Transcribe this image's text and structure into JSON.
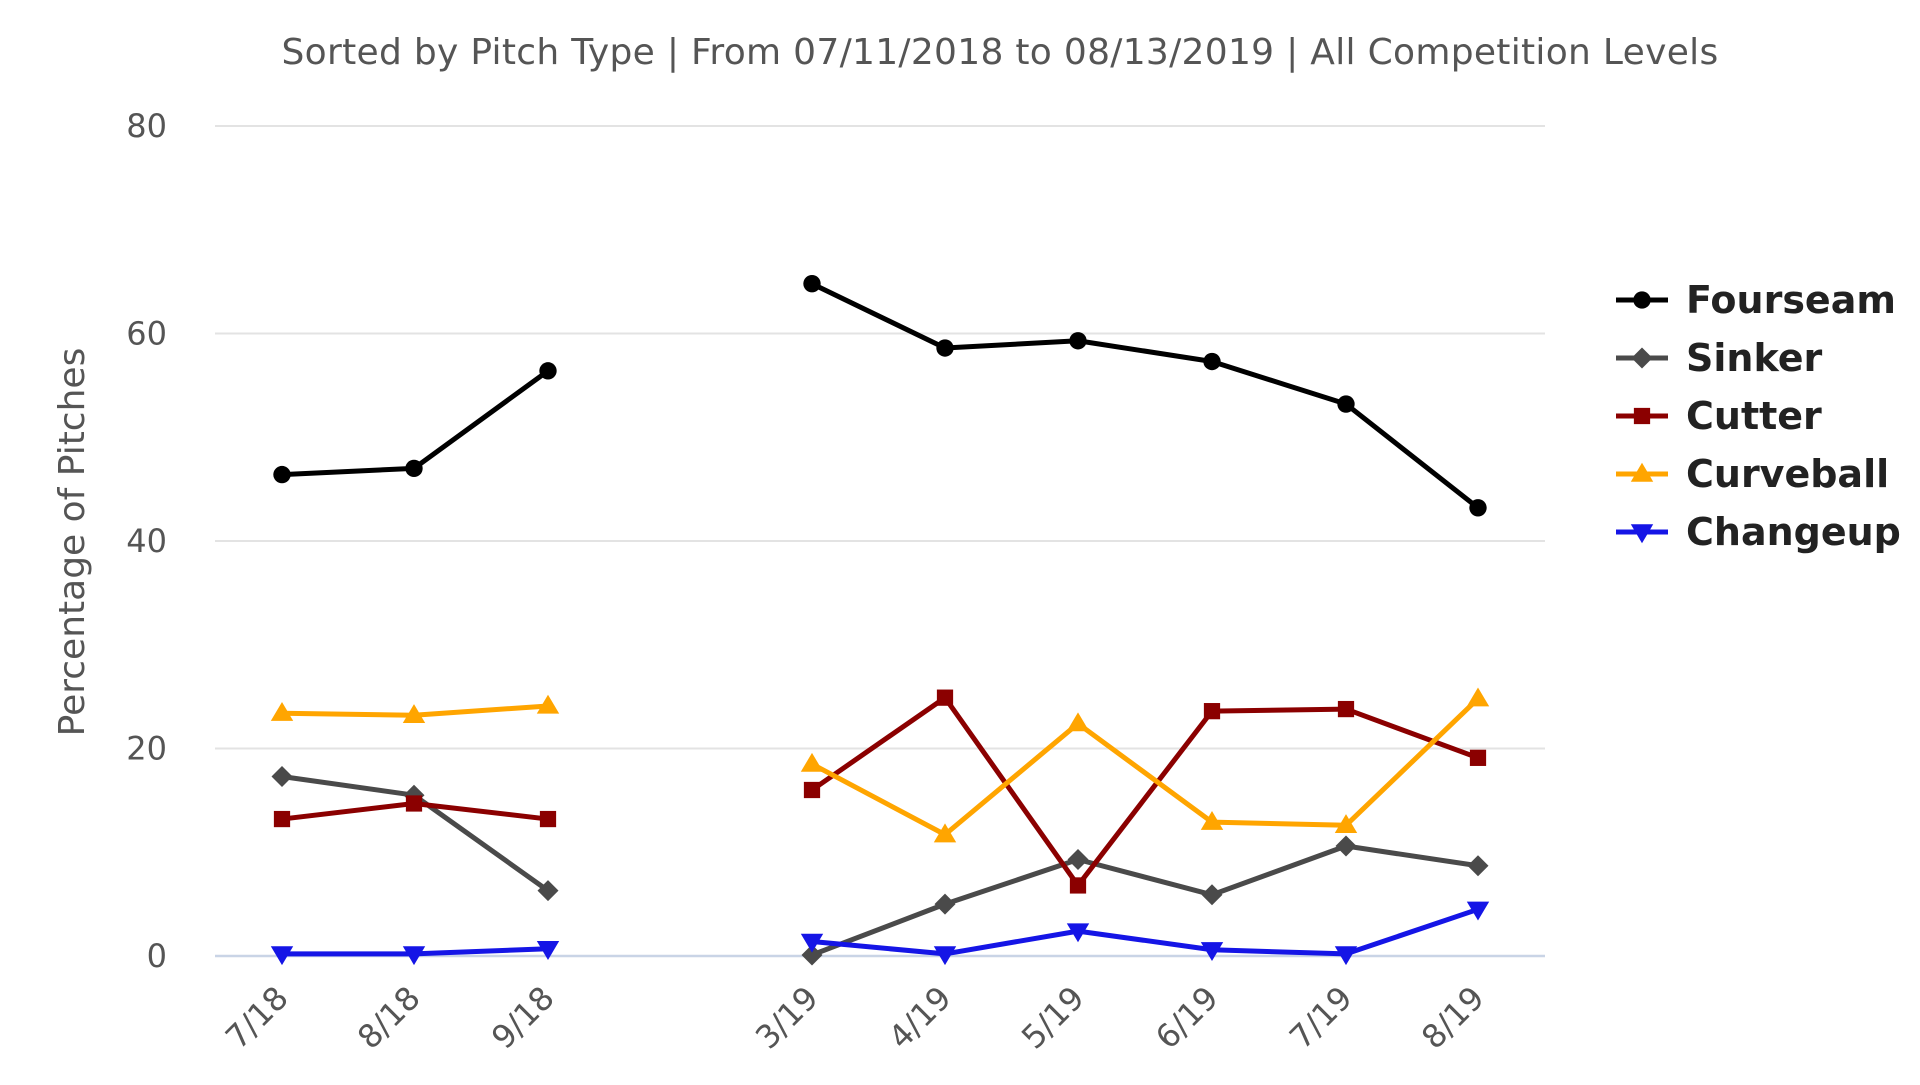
{
  "chart_data": {
    "type": "line",
    "title": "",
    "subtitle": "Sorted by Pitch Type | From 07/11/2018 to 08/13/2019 | All Competition Levels",
    "xlabel": "",
    "ylabel": "Percentage of Pitches",
    "ylim": [
      0,
      80
    ],
    "yticks": [
      "0",
      "20",
      "40",
      "60",
      "80"
    ],
    "grid": true,
    "legend_position": "right",
    "categories": [
      "7/18",
      "8/18",
      "9/18",
      "3/19",
      "4/19",
      "5/19",
      "6/19",
      "7/19",
      "8/19"
    ],
    "series": [
      {
        "name": "Fourseam",
        "color": "#000000",
        "marker": "circle",
        "values": [
          46.4,
          47.0,
          56.4,
          64.8,
          58.6,
          59.3,
          57.3,
          53.2,
          43.2
        ]
      },
      {
        "name": "Sinker",
        "color": "#4a4a4a",
        "marker": "diamond",
        "values": [
          17.3,
          15.5,
          6.3,
          0.1,
          5.0,
          9.3,
          5.9,
          10.6,
          8.7
        ]
      },
      {
        "name": "Cutter",
        "color": "#8b0000",
        "marker": "square",
        "values": [
          13.2,
          14.7,
          13.2,
          16.0,
          24.9,
          6.8,
          23.6,
          23.8,
          19.1
        ]
      },
      {
        "name": "Curveball",
        "color": "#ffa500",
        "marker": "triangle-up",
        "values": [
          23.4,
          23.2,
          24.1,
          18.5,
          11.7,
          22.4,
          12.9,
          12.6,
          24.8
        ]
      },
      {
        "name": "Changeup",
        "color": "#1515e6",
        "marker": "triangle-down",
        "values": [
          0.2,
          0.2,
          0.7,
          1.4,
          0.2,
          2.4,
          0.6,
          0.2,
          4.5
        ]
      }
    ]
  }
}
